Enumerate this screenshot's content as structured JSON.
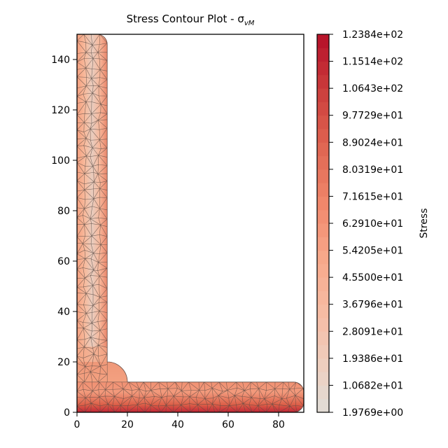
{
  "chart_data": {
    "type": "heatmap",
    "title": "Stress Contour Plot - σ",
    "title_subscript": "vM",
    "x_ticks": [
      0,
      20,
      40,
      60,
      80
    ],
    "y_ticks": [
      0,
      20,
      40,
      60,
      80,
      100,
      120,
      140
    ],
    "xlim": [
      0,
      90
    ],
    "ylim": [
      0,
      150
    ],
    "colorbar_label": "Stress",
    "colorbar_levels": [
      "1.9769e+00",
      "1.0682e+01",
      "1.9386e+01",
      "2.8091e+01",
      "3.6796e+01",
      "4.5500e+01",
      "5.4205e+01",
      "6.2910e+01",
      "7.1615e+01",
      "8.0319e+01",
      "8.9024e+01",
      "9.7729e+01",
      "1.0643e+02",
      "1.1514e+02",
      "1.2384e+02"
    ],
    "stress_min": 1.9769,
    "stress_max": 123.84,
    "section": {
      "vertical_leg_thickness": 12,
      "horizontal_leg_thickness": 12,
      "height": 150,
      "width": 90,
      "root_radius": 8
    },
    "grid": false
  },
  "colors": {
    "low": "#e0ddd8",
    "mid": "#f7a987",
    "high": "#b50f29",
    "mesh": "#5a4a44"
  }
}
